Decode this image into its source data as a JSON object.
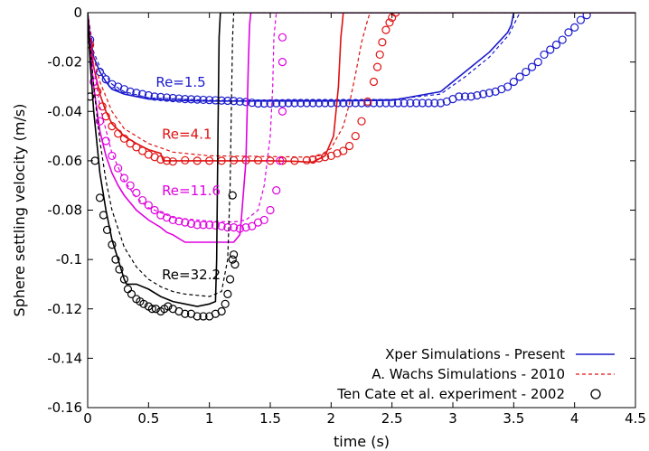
{
  "chart_data": {
    "type": "line",
    "xlabel": "time (s)",
    "ylabel": "Sphere settling velocity (m/s)",
    "xlim": [
      0,
      4.5
    ],
    "ylim": [
      -0.16,
      0
    ],
    "xticks": [
      "0",
      "0.5",
      "1",
      "1.5",
      "2",
      "2.5",
      "3",
      "3.5",
      "4",
      "4.5"
    ],
    "yticks": [
      "0",
      "-0.02",
      "-0.04",
      "-0.06",
      "-0.08",
      "-0.1",
      "-0.12",
      "-0.14",
      "-0.16"
    ],
    "legend_position": "bottom-right",
    "legend": [
      {
        "label": "Xper Simulations - Present",
        "style": "solid"
      },
      {
        "label": "A. Wachs Simulations - 2010",
        "style": "dashed"
      },
      {
        "label": "Ten Cate et al. experiment - 2002",
        "style": "circle"
      }
    ],
    "annotations": [
      {
        "text": "Re=1.5",
        "x": 0.5,
        "y": -0.03,
        "color": "#1a1acc"
      },
      {
        "text": "Re=4.1",
        "x": 0.55,
        "y": -0.051,
        "color": "#e01010"
      },
      {
        "text": "Re=11.6",
        "x": 0.55,
        "y": -0.074,
        "color": "#e000e0"
      },
      {
        "text": "Re=32.2",
        "x": 0.55,
        "y": -0.108,
        "color": "#000000"
      }
    ],
    "series": [
      {
        "re": "Re=1.5",
        "color": "#1a1acc",
        "present": {
          "x": [
            0,
            0.02,
            0.05,
            0.1,
            0.15,
            0.2,
            0.3,
            0.4,
            0.5,
            0.7,
            1.0,
            1.5,
            2.0,
            2.5,
            2.9,
            3.1,
            3.3,
            3.45,
            3.48,
            3.5,
            4.5
          ],
          "y": [
            0,
            -0.01,
            -0.018,
            -0.024,
            -0.028,
            -0.031,
            -0.033,
            -0.034,
            -0.035,
            -0.0355,
            -0.0358,
            -0.0358,
            -0.0358,
            -0.0355,
            -0.032,
            -0.024,
            -0.016,
            -0.008,
            -0.005,
            0,
            0
          ]
        },
        "reference": {
          "x": [
            0,
            0.05,
            0.1,
            0.2,
            0.3,
            0.5,
            1.0,
            1.5,
            2.0,
            2.5,
            2.9,
            3.1,
            3.3,
            3.46,
            3.5,
            3.55,
            4.5
          ],
          "y": [
            0,
            -0.016,
            -0.022,
            -0.029,
            -0.032,
            -0.0345,
            -0.0355,
            -0.0355,
            -0.0355,
            -0.0352,
            -0.033,
            -0.026,
            -0.018,
            -0.009,
            -0.005,
            0,
            0
          ]
        },
        "experiment": {
          "x": [
            0.02,
            0.1,
            0.15,
            0.2,
            0.25,
            0.3,
            0.35,
            0.4,
            0.45,
            0.5,
            0.55,
            0.6,
            0.65,
            0.7,
            0.75,
            0.8,
            0.85,
            0.9,
            0.95,
            1.0,
            1.05,
            1.1,
            1.15,
            1.2,
            1.25,
            1.3,
            1.35,
            1.4,
            1.45,
            1.5,
            1.55,
            1.6,
            1.65,
            1.7,
            1.75,
            1.8,
            1.85,
            1.9,
            1.95,
            2.0,
            2.05,
            2.1,
            2.15,
            2.2,
            2.25,
            2.3,
            2.35,
            2.4,
            2.45,
            2.5,
            2.55,
            2.6,
            2.65,
            2.7,
            2.75,
            2.8,
            2.85,
            2.9,
            2.95,
            3.0,
            3.05,
            3.1,
            3.15,
            3.2,
            3.25,
            3.3,
            3.35,
            3.4,
            3.45,
            3.5,
            3.55,
            3.6,
            3.65,
            3.7,
            3.75,
            3.8,
            3.85,
            3.9,
            3.95,
            4.0,
            4.05,
            4.1
          ],
          "y": [
            -0.011,
            -0.024,
            -0.027,
            -0.029,
            -0.03,
            -0.031,
            -0.032,
            -0.0325,
            -0.033,
            -0.0335,
            -0.034,
            -0.0342,
            -0.0344,
            -0.0346,
            -0.0348,
            -0.035,
            -0.0351,
            -0.0352,
            -0.0353,
            -0.0354,
            -0.0355,
            -0.0356,
            -0.0357,
            -0.0358,
            -0.036,
            -0.0362,
            -0.0365,
            -0.0368,
            -0.0368,
            -0.0368,
            -0.0367,
            -0.0367,
            -0.0366,
            -0.0366,
            -0.0366,
            -0.0366,
            -0.0366,
            -0.0366,
            -0.0366,
            -0.0366,
            -0.0366,
            -0.0366,
            -0.0366,
            -0.0366,
            -0.0366,
            -0.0366,
            -0.0366,
            -0.0366,
            -0.0366,
            -0.0366,
            -0.0366,
            -0.0366,
            -0.0366,
            -0.0366,
            -0.0366,
            -0.0366,
            -0.0366,
            -0.0366,
            -0.036,
            -0.035,
            -0.034,
            -0.034,
            -0.034,
            -0.0335,
            -0.033,
            -0.0325,
            -0.032,
            -0.031,
            -0.03,
            -0.028,
            -0.026,
            -0.024,
            -0.022,
            -0.02,
            -0.017,
            -0.015,
            -0.013,
            -0.011,
            -0.008,
            -0.006,
            -0.003,
            -0.001
          ]
        }
      },
      {
        "re": "Re=4.1",
        "color": "#e01010",
        "present": {
          "x": [
            0,
            0.02,
            0.05,
            0.1,
            0.15,
            0.2,
            0.3,
            0.4,
            0.5,
            0.6,
            0.62,
            0.7,
            1.0,
            1.5,
            1.7,
            1.8,
            1.85,
            1.87,
            1.95,
            2.02,
            2.03,
            2.06,
            2.08,
            2.09,
            2.1,
            4.5
          ],
          "y": [
            0,
            -0.012,
            -0.022,
            -0.033,
            -0.04,
            -0.045,
            -0.05,
            -0.053,
            -0.0555,
            -0.057,
            -0.06,
            -0.06,
            -0.06,
            -0.06,
            -0.0602,
            -0.0605,
            -0.0605,
            -0.06,
            -0.058,
            -0.05,
            -0.045,
            -0.03,
            -0.01,
            -0.005,
            0,
            0
          ]
        },
        "reference": {
          "x": [
            0,
            0.05,
            0.1,
            0.2,
            0.3,
            0.5,
            0.7,
            1.0,
            1.5,
            1.8,
            1.9,
            2.0,
            2.1,
            2.15,
            2.2,
            2.25,
            2.3,
            2.32,
            4.5
          ],
          "y": [
            0,
            -0.018,
            -0.028,
            -0.04,
            -0.047,
            -0.053,
            -0.0565,
            -0.058,
            -0.0583,
            -0.0585,
            -0.058,
            -0.055,
            -0.046,
            -0.037,
            -0.025,
            -0.012,
            -0.003,
            0,
            0
          ]
        },
        "experiment": {
          "x": [
            0.02,
            0.08,
            0.12,
            0.15,
            0.2,
            0.25,
            0.3,
            0.35,
            0.4,
            0.45,
            0.5,
            0.55,
            0.6,
            0.65,
            0.7,
            0.8,
            0.9,
            1.0,
            1.1,
            1.2,
            1.3,
            1.4,
            1.5,
            1.6,
            1.7,
            1.8,
            1.85,
            1.9,
            1.95,
            2.0,
            2.05,
            2.1,
            2.15,
            2.2,
            2.25,
            2.3,
            2.35,
            2.38,
            2.4,
            2.42,
            2.45,
            2.48,
            2.5,
            2.53
          ],
          "y": [
            -0.013,
            -0.032,
            -0.038,
            -0.042,
            -0.046,
            -0.049,
            -0.051,
            -0.053,
            -0.0545,
            -0.056,
            -0.0575,
            -0.0585,
            -0.0595,
            -0.06,
            -0.0603,
            -0.0598,
            -0.06,
            -0.06,
            -0.06,
            -0.0598,
            -0.0598,
            -0.0598,
            -0.06,
            -0.06,
            -0.06,
            -0.0598,
            -0.0595,
            -0.059,
            -0.0585,
            -0.058,
            -0.057,
            -0.056,
            -0.054,
            -0.05,
            -0.044,
            -0.036,
            -0.028,
            -0.022,
            -0.017,
            -0.012,
            -0.007,
            -0.004,
            -0.002,
            0
          ]
        }
      },
      {
        "re": "Re=11.6",
        "color": "#e000e0",
        "present": {
          "x": [
            0,
            0.02,
            0.05,
            0.1,
            0.15,
            0.2,
            0.25,
            0.3,
            0.4,
            0.5,
            0.6,
            0.65,
            0.7,
            0.8,
            1.0,
            1.2,
            1.25,
            1.26,
            1.3,
            1.32,
            1.33,
            1.34,
            4.5
          ],
          "y": [
            0,
            -0.015,
            -0.03,
            -0.048,
            -0.058,
            -0.065,
            -0.07,
            -0.074,
            -0.08,
            -0.084,
            -0.087,
            -0.089,
            -0.09,
            -0.093,
            -0.093,
            -0.093,
            -0.09,
            -0.085,
            -0.06,
            -0.02,
            -0.005,
            0,
            0
          ]
        },
        "reference": {
          "x": [
            0,
            0.05,
            0.1,
            0.2,
            0.3,
            0.4,
            0.5,
            0.7,
            1.0,
            1.2,
            1.3,
            1.4,
            1.45,
            1.5,
            1.52,
            1.53,
            1.55,
            4.5
          ],
          "y": [
            0,
            -0.022,
            -0.038,
            -0.057,
            -0.068,
            -0.075,
            -0.079,
            -0.083,
            -0.0845,
            -0.0848,
            -0.084,
            -0.08,
            -0.07,
            -0.05,
            -0.03,
            -0.01,
            0,
            0
          ]
        },
        "experiment": {
          "x": [
            0.05,
            0.1,
            0.15,
            0.2,
            0.25,
            0.3,
            0.35,
            0.4,
            0.45,
            0.5,
            0.55,
            0.6,
            0.65,
            0.7,
            0.75,
            0.8,
            0.85,
            0.9,
            0.95,
            1.0,
            1.05,
            1.1,
            1.15,
            1.2,
            1.25,
            1.3,
            1.35,
            1.4,
            1.45,
            1.5,
            1.55,
            1.58,
            1.6,
            1.6,
            1.6
          ],
          "y": [
            -0.028,
            -0.044,
            -0.052,
            -0.058,
            -0.063,
            -0.067,
            -0.07,
            -0.073,
            -0.076,
            -0.078,
            -0.08,
            -0.082,
            -0.083,
            -0.084,
            -0.0845,
            -0.085,
            -0.0855,
            -0.086,
            -0.086,
            -0.086,
            -0.0862,
            -0.0865,
            -0.087,
            -0.087,
            -0.0875,
            -0.087,
            -0.0865,
            -0.085,
            -0.084,
            -0.08,
            -0.072,
            -0.06,
            -0.04,
            -0.02,
            -0.01
          ]
        }
      },
      {
        "re": "Re=32.2",
        "color": "#000000",
        "present": {
          "x": [
            0,
            0.02,
            0.05,
            0.08,
            0.1,
            0.15,
            0.2,
            0.25,
            0.3,
            0.32,
            0.4,
            0.5,
            0.6,
            0.7,
            0.8,
            0.9,
            1.0,
            1.05,
            1.06,
            1.07,
            1.08,
            1.09,
            4.5
          ],
          "y": [
            0,
            -0.02,
            -0.04,
            -0.055,
            -0.065,
            -0.08,
            -0.092,
            -0.1,
            -0.108,
            -0.11,
            -0.11,
            -0.112,
            -0.115,
            -0.117,
            -0.118,
            -0.119,
            -0.118,
            -0.117,
            -0.1,
            -0.05,
            -0.01,
            0,
            0
          ]
        },
        "reference": {
          "x": [
            0,
            0.05,
            0.1,
            0.15,
            0.2,
            0.3,
            0.4,
            0.5,
            0.6,
            0.7,
            0.8,
            1.0,
            1.1,
            1.15,
            1.17,
            1.18,
            1.19,
            1.2,
            4.5
          ],
          "y": [
            0,
            -0.03,
            -0.052,
            -0.068,
            -0.08,
            -0.095,
            -0.103,
            -0.108,
            -0.111,
            -0.113,
            -0.114,
            -0.115,
            -0.113,
            -0.1,
            -0.07,
            -0.04,
            -0.01,
            0,
            0
          ]
        },
        "experiment": {
          "x": [
            0.02,
            0.06,
            0.1,
            0.13,
            0.16,
            0.2,
            0.23,
            0.26,
            0.3,
            0.33,
            0.36,
            0.4,
            0.43,
            0.46,
            0.5,
            0.53,
            0.56,
            0.6,
            0.63,
            0.66,
            0.7,
            0.75,
            0.8,
            0.85,
            0.9,
            0.95,
            1.0,
            1.05,
            1.1,
            1.13,
            1.15,
            1.17,
            1.19,
            1.2,
            1.21,
            1.19
          ],
          "y": [
            -0.034,
            -0.06,
            -0.075,
            -0.082,
            -0.088,
            -0.094,
            -0.1,
            -0.104,
            -0.108,
            -0.112,
            -0.114,
            -0.116,
            -0.117,
            -0.118,
            -0.119,
            -0.12,
            -0.12,
            -0.121,
            -0.12,
            -0.119,
            -0.12,
            -0.121,
            -0.122,
            -0.122,
            -0.123,
            -0.123,
            -0.123,
            -0.122,
            -0.121,
            -0.118,
            -0.114,
            -0.108,
            -0.1,
            -0.098,
            -0.102,
            -0.074
          ]
        }
      }
    ]
  }
}
